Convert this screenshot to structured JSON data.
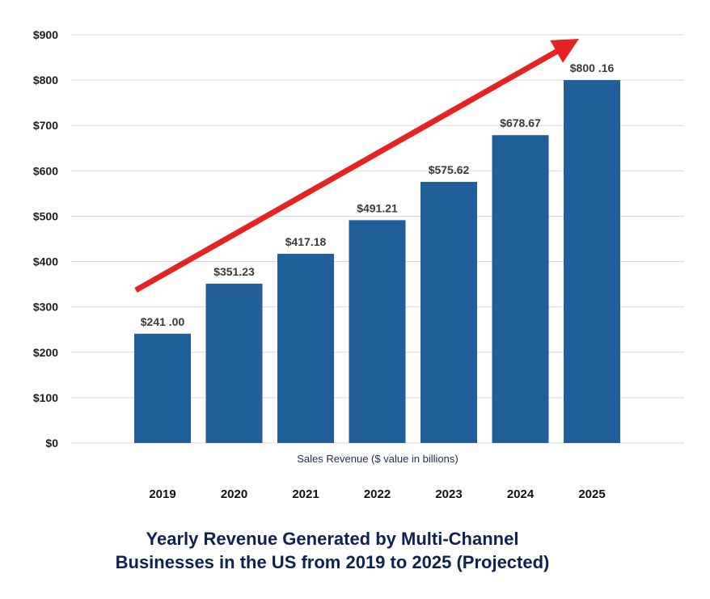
{
  "chart_data": {
    "type": "bar",
    "title_lines": [
      "Yearly Revenue Generated by Multi-Channel",
      "Businesses in the US from 2019 to 2025 (Projected)"
    ],
    "xlabel": "Sales Revenue ($ value in billions)",
    "ylabel": "",
    "categories": [
      "2019",
      "2020",
      "2021",
      "2022",
      "2023",
      "2024",
      "2025"
    ],
    "values": [
      241.0,
      351.23,
      417.18,
      491.21,
      575.62,
      678.67,
      800.16
    ],
    "data_labels": [
      "$241 .00",
      "$351.23",
      "$417.18",
      "$491.21",
      "$575.62",
      "$678.67",
      "$800 .16"
    ],
    "ylim": [
      0,
      900
    ],
    "yticks": [
      0,
      100,
      200,
      300,
      400,
      500,
      600,
      700,
      800,
      900
    ],
    "ytick_labels": [
      "$0",
      "$100",
      "$200",
      "$300",
      "$400",
      "$500",
      "$600",
      "$700",
      "$800",
      "$900"
    ],
    "grid": true,
    "legend": "none",
    "colors": {
      "bar": "#215f9a",
      "grid": "#d9d9d9",
      "trend_arrow": "#e52421",
      "title": "#0d2251"
    },
    "annotations": [
      {
        "type": "trend-arrow",
        "direction": "up-right",
        "from_category": "2019",
        "to_category": "2025"
      }
    ]
  }
}
